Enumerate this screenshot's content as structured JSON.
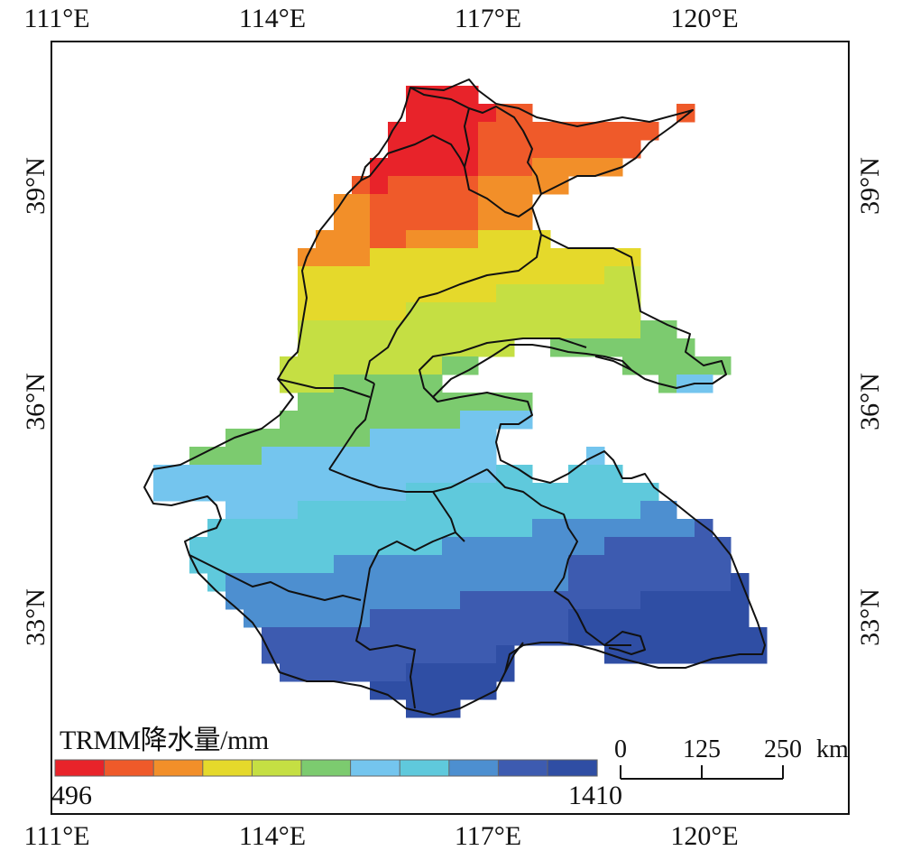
{
  "map": {
    "axes": {
      "top": [
        "111°E",
        "114°E",
        "117°E",
        "120°E"
      ],
      "bottom": [
        "111°E",
        "114°E",
        "117°E",
        "120°E"
      ],
      "left": [
        "39°N",
        "36°N",
        "33°N"
      ],
      "right": [
        "39°N",
        "36°N",
        "33°N"
      ]
    },
    "legend": {
      "title": "TRMM降水量/mm",
      "min": "496",
      "max": "1410",
      "colors": [
        "#e8232a",
        "#ef5a2a",
        "#f28f29",
        "#e5d92b",
        "#c5df43",
        "#7ccb6f",
        "#74c5ee",
        "#5fc9dc",
        "#4d8fd0",
        "#3d5bb0",
        "#2f4ea4"
      ]
    },
    "scale_bar": {
      "ticks": [
        "0",
        "125",
        "250"
      ],
      "unit": "km"
    }
  }
}
